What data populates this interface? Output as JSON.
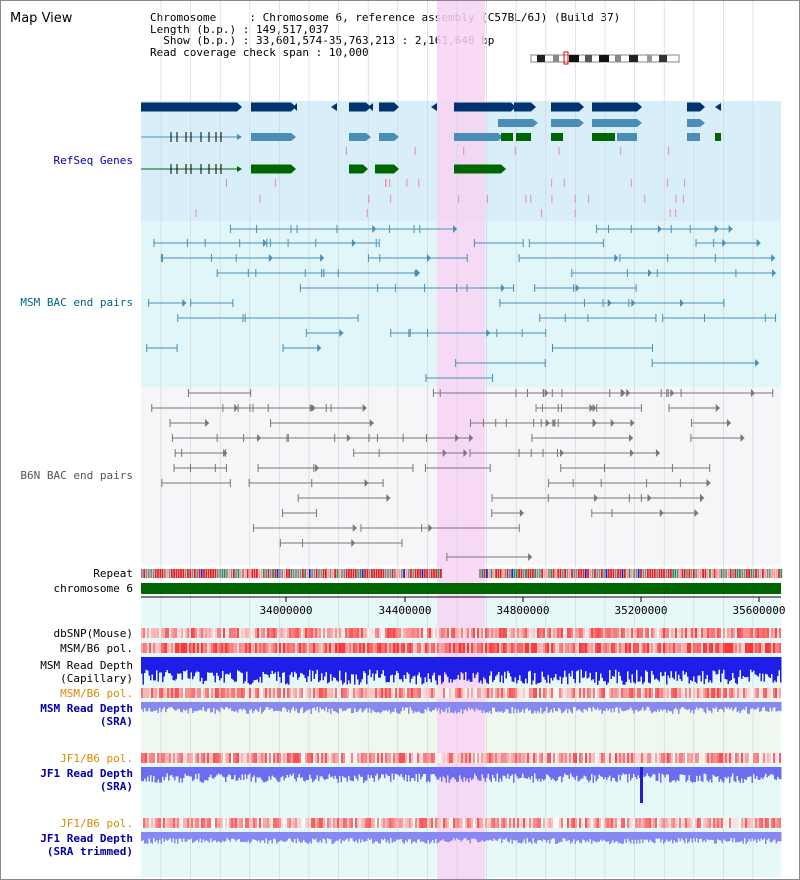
{
  "page_title": "Map View",
  "header": {
    "chromosome_label": "Chromosome",
    "chromosome_value": "Chromosome 6, reference assembly (C57BL/6J) (Build 37)",
    "length_label": "Length (b.p.)",
    "length_value": "149,517,037",
    "show_label": "Show (b.p.)",
    "show_value": "33,601,574-35,763,213 : 2,161,640 bp",
    "coverage_label": "Read coverage check span",
    "coverage_value": "10,000"
  },
  "tracks": {
    "refseq": {
      "label": "RefSeq Genes",
      "color": "#0000aa"
    },
    "msm_bac": {
      "label": "MSM BAC end pairs",
      "color": "#006688"
    },
    "b6n_bac": {
      "label": "B6N BAC end pairs",
      "color": "#555555"
    },
    "repeat": {
      "label": "Repeat"
    },
    "chromosome": {
      "label": "chromosome 6"
    },
    "dbsnp": {
      "label": "dbSNP(Mouse)"
    },
    "msm_b6_pol_1": {
      "label": "MSM/B6 pol."
    },
    "msm_read_depth_cap": {
      "label": "MSM Read Depth\n(Capillary)"
    },
    "msm_b6_pol_2": {
      "label": "MSM/B6 pol.",
      "color": "#dd8800"
    },
    "msm_read_depth_sra": {
      "label": "MSM Read Depth\n(SRA)",
      "color": "#0000aa"
    },
    "jf1_b6_pol_1": {
      "label": "JF1/B6 pol.",
      "color": "#dd8800"
    },
    "jf1_read_depth_sra": {
      "label": "JF1 Read Depth\n(SRA)",
      "color": "#0000aa"
    },
    "jf1_b6_pol_2": {
      "label": "JF1/B6 pol.",
      "color": "#dd8800"
    },
    "jf1_read_depth_trim": {
      "label": "JF1 Read Depth\n(SRA trimmed)",
      "color": "#0000aa"
    }
  },
  "axis": {
    "ticks": [
      "34000000",
      "34400000",
      "34800000",
      "35200000",
      "35600000"
    ]
  },
  "colors": {
    "highlight": "#f8d4f4",
    "refseq_bg": "#d8eef8",
    "msm_bg": "#e0f6f8",
    "b6n_bg": "#f6f6f8",
    "gene_dark": "#00346e",
    "gene_mid": "#4a8eb8",
    "gene_green": "#006600",
    "chromosome_green": "#006600"
  }
}
